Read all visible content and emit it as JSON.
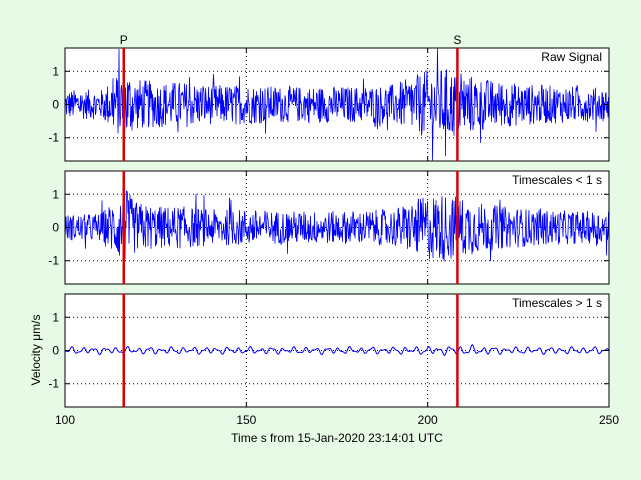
{
  "colors": {
    "background": "#e6fae6",
    "trace": "#0000ff",
    "phase_marker": "#dd0000",
    "axes": "#000000",
    "grid": "#000000"
  },
  "chart_data": {
    "type": "line",
    "figure": {
      "xlabel": "Time s from 15-Jan-2020 23:14:01 UTC",
      "ylabel": "Velocity μm/s",
      "xlim": [
        100,
        250
      ],
      "xticks": [
        100,
        150,
        200,
        250
      ],
      "grid": true,
      "phase_markers": [
        {
          "label": "P",
          "x": 116.2
        },
        {
          "label": "S",
          "x": 208.2
        }
      ]
    },
    "panels": [
      {
        "annotation": "Raw Signal",
        "ylim": [
          -1.7,
          1.7
        ],
        "yticks": [
          -1,
          0,
          1
        ],
        "series": [
          {
            "kind": "broadband",
            "amplitude_envelope": [
              {
                "x": 100,
                "a": 0.45
              },
              {
                "x": 105,
                "a": 0.45
              },
              {
                "x": 110,
                "a": 0.45
              },
              {
                "x": 114,
                "a": 0.9
              },
              {
                "x": 117,
                "a": 1.15
              },
              {
                "x": 119,
                "a": 0.8
              },
              {
                "x": 125,
                "a": 0.7
              },
              {
                "x": 132,
                "a": 0.7
              },
              {
                "x": 140,
                "a": 0.6
              },
              {
                "x": 150,
                "a": 0.6
              },
              {
                "x": 160,
                "a": 0.55
              },
              {
                "x": 170,
                "a": 0.55
              },
              {
                "x": 180,
                "a": 0.55
              },
              {
                "x": 190,
                "a": 0.6
              },
              {
                "x": 195,
                "a": 0.8
              },
              {
                "x": 200,
                "a": 1.05
              },
              {
                "x": 205,
                "a": 1.1
              },
              {
                "x": 210,
                "a": 0.95
              },
              {
                "x": 215,
                "a": 0.8
              },
              {
                "x": 220,
                "a": 0.7
              },
              {
                "x": 230,
                "a": 0.6
              },
              {
                "x": 240,
                "a": 0.55
              },
              {
                "x": 250,
                "a": 0.5
              }
            ]
          }
        ]
      },
      {
        "annotation": "Timescales < 1 s",
        "ylim": [
          -1.7,
          1.7
        ],
        "yticks": [
          -1,
          0,
          1
        ],
        "series": [
          {
            "kind": "high-pass",
            "amplitude_envelope": [
              {
                "x": 100,
                "a": 0.4
              },
              {
                "x": 105,
                "a": 0.4
              },
              {
                "x": 110,
                "a": 0.45
              },
              {
                "x": 114,
                "a": 0.9
              },
              {
                "x": 117,
                "a": 1.15
              },
              {
                "x": 119,
                "a": 0.8
              },
              {
                "x": 125,
                "a": 0.65
              },
              {
                "x": 132,
                "a": 0.65
              },
              {
                "x": 140,
                "a": 0.55
              },
              {
                "x": 150,
                "a": 0.55
              },
              {
                "x": 160,
                "a": 0.5
              },
              {
                "x": 170,
                "a": 0.5
              },
              {
                "x": 180,
                "a": 0.5
              },
              {
                "x": 190,
                "a": 0.55
              },
              {
                "x": 195,
                "a": 0.75
              },
              {
                "x": 200,
                "a": 1.0
              },
              {
                "x": 205,
                "a": 1.05
              },
              {
                "x": 210,
                "a": 0.9
              },
              {
                "x": 215,
                "a": 0.75
              },
              {
                "x": 220,
                "a": 0.65
              },
              {
                "x": 230,
                "a": 0.55
              },
              {
                "x": 240,
                "a": 0.5
              },
              {
                "x": 250,
                "a": 0.5
              }
            ]
          }
        ]
      },
      {
        "annotation": "Timescales > 1 s",
        "ylim": [
          -1.7,
          1.7
        ],
        "yticks": [
          -1,
          0,
          1
        ],
        "series": [
          {
            "kind": "low-pass",
            "amplitude_envelope": [
              {
                "x": 100,
                "a": 0.12
              },
              {
                "x": 130,
                "a": 0.12
              },
              {
                "x": 160,
                "a": 0.12
              },
              {
                "x": 190,
                "a": 0.12
              },
              {
                "x": 205,
                "a": 0.15
              },
              {
                "x": 210,
                "a": 0.18
              },
              {
                "x": 220,
                "a": 0.12
              },
              {
                "x": 250,
                "a": 0.12
              }
            ]
          }
        ]
      }
    ]
  }
}
